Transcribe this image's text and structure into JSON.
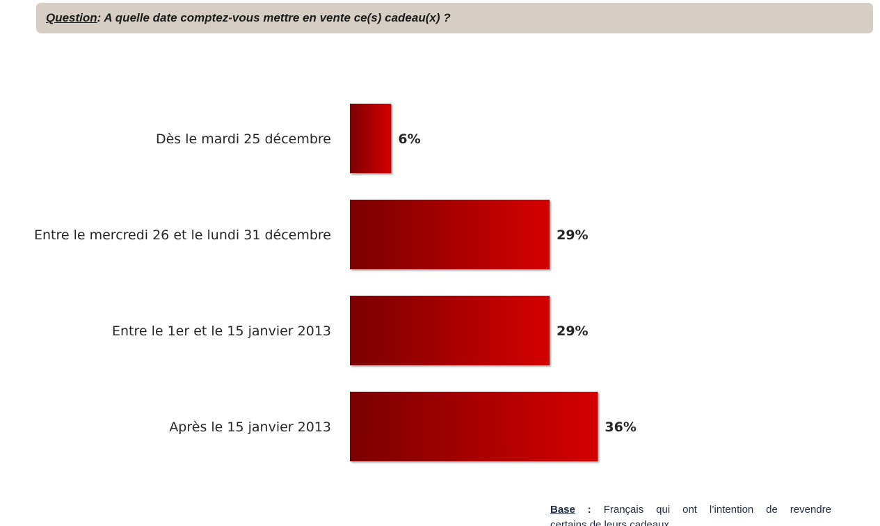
{
  "question": {
    "label": "Question",
    "text": " : A quelle date comptez-vous mettre en vente ce(s) cadeau(x) ?"
  },
  "chart_data": {
    "type": "bar",
    "orientation": "horizontal",
    "categories": [
      "Dès le mardi 25 décembre",
      "Entre le mercredi 26 et le lundi 31 décembre",
      "Entre le 1er et le 15 janvier 2013",
      "Après le 15 janvier 2013"
    ],
    "values": [
      6,
      29,
      29,
      36
    ],
    "value_labels": [
      "6%",
      "29%",
      "29%",
      "36%"
    ],
    "unit": "%",
    "grid": false,
    "legend": "none",
    "bar_color_dark": "#7a0000",
    "bar_color_light": "#d40000"
  },
  "base": {
    "label": "Base",
    "separator": " :",
    "text_line1": "Français qui ont l’intention de revendre",
    "text_line2": "certains de leurs cadeaux"
  }
}
